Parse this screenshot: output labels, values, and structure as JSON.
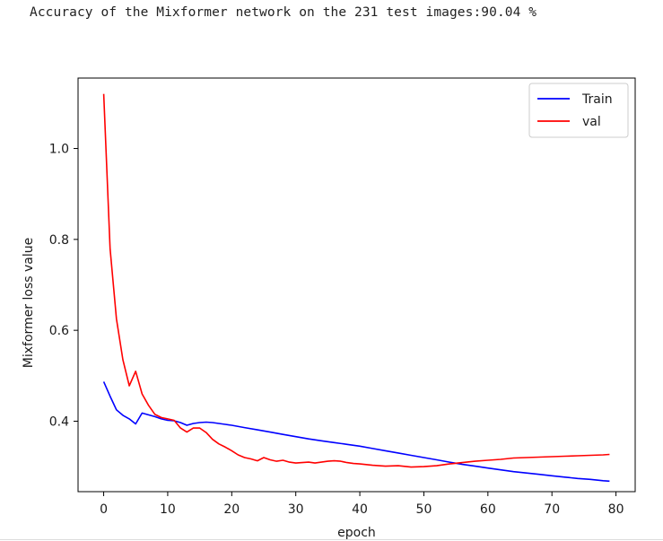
{
  "output_text": "Accuracy of the Mixformer network on the 231 test images:90.04 %",
  "chart_data": {
    "type": "line",
    "xlabel": "epoch",
    "ylabel": "Mixformer loss value",
    "xlim": [
      -4,
      83
    ],
    "ylim": [
      0.245,
      1.155
    ],
    "xticks": [
      0,
      10,
      20,
      30,
      40,
      50,
      60,
      70,
      80
    ],
    "yticks": [
      0.4,
      0.6,
      0.8,
      1.0
    ],
    "xtick_labels": [
      "0",
      "10",
      "20",
      "30",
      "40",
      "50",
      "60",
      "70",
      "80"
    ],
    "ytick_labels": [
      "0.4",
      "0.6",
      "0.8",
      "1.0"
    ],
    "grid": false,
    "legend_position": "top-right",
    "series": [
      {
        "name": "Train",
        "color": "#0000ff",
        "x": [
          0,
          1,
          2,
          3,
          4,
          5,
          6,
          7,
          8,
          9,
          10,
          11,
          12,
          13,
          14,
          15,
          16,
          17,
          18,
          19,
          20,
          22,
          24,
          26,
          28,
          30,
          32,
          34,
          36,
          38,
          40,
          42,
          44,
          46,
          48,
          50,
          52,
          54,
          56,
          58,
          60,
          62,
          64,
          66,
          68,
          70,
          72,
          74,
          76,
          78,
          79
        ],
        "y": [
          0.487,
          0.455,
          0.425,
          0.413,
          0.405,
          0.394,
          0.418,
          0.414,
          0.41,
          0.405,
          0.402,
          0.401,
          0.397,
          0.391,
          0.395,
          0.397,
          0.398,
          0.397,
          0.395,
          0.393,
          0.391,
          0.386,
          0.381,
          0.376,
          0.371,
          0.366,
          0.361,
          0.357,
          0.353,
          0.349,
          0.345,
          0.34,
          0.335,
          0.33,
          0.325,
          0.32,
          0.315,
          0.31,
          0.305,
          0.301,
          0.297,
          0.293,
          0.289,
          0.286,
          0.283,
          0.28,
          0.277,
          0.274,
          0.272,
          0.269,
          0.268
        ]
      },
      {
        "name": "val",
        "color": "#ff0000",
        "x": [
          0,
          1,
          2,
          3,
          4,
          5,
          6,
          7,
          8,
          9,
          10,
          11,
          12,
          13,
          14,
          15,
          16,
          17,
          18,
          19,
          20,
          21,
          22,
          23,
          24,
          25,
          26,
          27,
          28,
          29,
          30,
          31,
          32,
          33,
          34,
          35,
          36,
          37,
          38,
          39,
          40,
          42,
          44,
          46,
          48,
          50,
          52,
          54,
          56,
          58,
          60,
          62,
          64,
          66,
          68,
          70,
          72,
          74,
          76,
          78,
          79
        ],
        "y": [
          1.12,
          0.78,
          0.625,
          0.535,
          0.478,
          0.51,
          0.46,
          0.435,
          0.415,
          0.408,
          0.405,
          0.402,
          0.385,
          0.376,
          0.385,
          0.385,
          0.375,
          0.36,
          0.35,
          0.343,
          0.335,
          0.326,
          0.32,
          0.317,
          0.313,
          0.32,
          0.315,
          0.312,
          0.314,
          0.31,
          0.308,
          0.309,
          0.31,
          0.308,
          0.31,
          0.312,
          0.313,
          0.312,
          0.309,
          0.307,
          0.306,
          0.303,
          0.301,
          0.302,
          0.299,
          0.3,
          0.302,
          0.306,
          0.309,
          0.312,
          0.314,
          0.316,
          0.319,
          0.32,
          0.321,
          0.322,
          0.323,
          0.324,
          0.325,
          0.326,
          0.327
        ]
      }
    ]
  }
}
